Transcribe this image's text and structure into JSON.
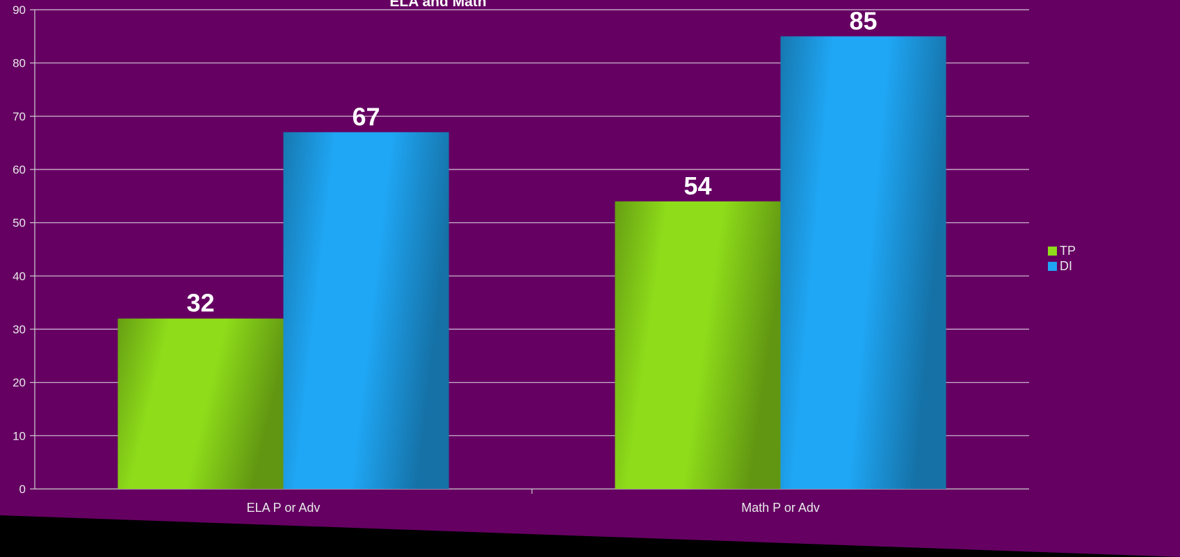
{
  "chart_data": {
    "type": "bar",
    "title": "ELA and Math",
    "categories": [
      "ELA P or Adv",
      "Math P or Adv"
    ],
    "series": [
      {
        "name": "TP",
        "values": [
          32,
          54
        ],
        "color": "#8edc1a"
      },
      {
        "name": "DI",
        "values": [
          67,
          85
        ],
        "color": "#1fa6f4"
      }
    ],
    "ylim": [
      0,
      90
    ],
    "yticks": [
      0,
      10,
      20,
      30,
      40,
      50,
      60,
      70,
      80,
      90
    ],
    "grid": true,
    "legend": "right",
    "data_labels": true,
    "colors": {
      "background": "#650062",
      "grid": "#d9c6d8",
      "axis": "#d0d0d0",
      "text": "#eaeaea"
    }
  }
}
